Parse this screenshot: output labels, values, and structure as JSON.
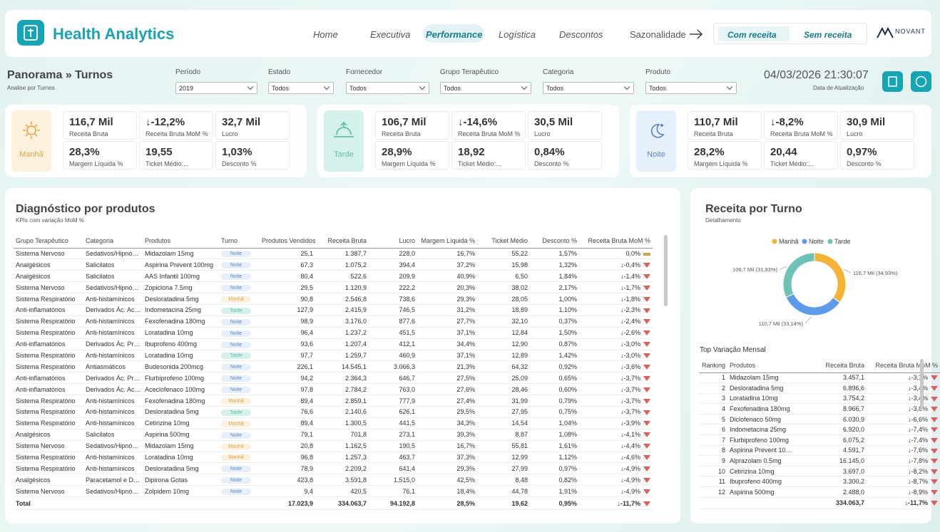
{
  "header": {
    "title": "Health Analytics",
    "nav": [
      "Home",
      "Executiva",
      "Performance",
      "Logística",
      "Descontos",
      "Sazonalidade"
    ],
    "active_nav": 2,
    "buttons": [
      "Com receita",
      "Sem receita"
    ],
    "logo": "NOVANT"
  },
  "panorama": {
    "title": "Panorama » Turnos",
    "subtitle": "Analise por Turnos"
  },
  "filters": [
    {
      "label": "Período",
      "value": "2019"
    },
    {
      "label": "Estado",
      "value": "Todos"
    },
    {
      "label": "Fornecedor",
      "value": "Todos"
    },
    {
      "label": "Grupo Terapêutico",
      "value": "Todos"
    },
    {
      "label": "Categoria",
      "value": "Todos"
    },
    {
      "label": "Produto",
      "value": "Todos"
    }
  ],
  "update": {
    "datetime": "04/03/2026 21:30:07",
    "label": "Data de Atualização"
  },
  "shifts": [
    {
      "name": "Manhã",
      "color": "#fdf0dc",
      "text_color": "#e0a44a",
      "kpis": [
        {
          "value": "116,7 Mil",
          "label": "Receita Bruta"
        },
        {
          "value": "↓-12,2%",
          "label": "Receita Bruta MoM %"
        },
        {
          "value": "32,7 Mil",
          "label": "Lucro"
        },
        {
          "value": "28,3%",
          "label": "Margem Líquida %"
        },
        {
          "value": "19,55",
          "label": "Ticket Médio:..."
        },
        {
          "value": "1,03%",
          "label": "Desconto %"
        }
      ]
    },
    {
      "name": "Tarde",
      "color": "#d4f1ec",
      "text_color": "#5fbfae",
      "kpis": [
        {
          "value": "106,7 Mil",
          "label": "Receita Bruta"
        },
        {
          "value": "↓-14,6%",
          "label": "Receita Bruta MoM %"
        },
        {
          "value": "30,5 Mil",
          "label": "Lucro"
        },
        {
          "value": "28,9%",
          "label": "Margem Líquida %"
        },
        {
          "value": "18,92",
          "label": "Ticket Médio:..."
        },
        {
          "value": "0,84%",
          "label": "Desconto %"
        }
      ]
    },
    {
      "name": "Noite",
      "color": "#e6effc",
      "text_color": "#5f86c9",
      "kpis": [
        {
          "value": "110,7 Mil",
          "label": "Receita Bruta"
        },
        {
          "value": "↓-8,2%",
          "label": "Receita Bruta MoM %"
        },
        {
          "value": "30,9 Mil",
          "label": "Lucro"
        },
        {
          "value": "28,2%",
          "label": "Margem Líquida %"
        },
        {
          "value": "20,44",
          "label": "Ticket Médio:..."
        },
        {
          "value": "0,97%",
          "label": "Desconto %"
        }
      ]
    }
  ],
  "diagnostic": {
    "title": "Diagnóstico por produtos",
    "subtitle": "KPIs com variação MoM %",
    "columns": [
      "Grupo Terapêutico",
      "Categoria",
      "Produtos",
      "Turno",
      "Produtos Vendidos",
      "Receita Bruta",
      "Lucro",
      "Margem Líquida %",
      "Ticket Médio",
      "Desconto %",
      "Receita Bruta MoM %"
    ],
    "rows": [
      [
        "Sistema Nervoso",
        "Sedativos/Hipnó…",
        "Midazolam 15mg",
        "Noite",
        "25,1",
        "1.387,7",
        "228,0",
        "16,7%",
        "55,22",
        "1,57%",
        "0,0%"
      ],
      [
        "Analgésicos",
        "Salicilatos",
        "Aspirina Prevent 100mg",
        "Noite",
        "67,3",
        "1.075,2",
        "394,4",
        "37,2%",
        "15,98",
        "1,32%",
        "↓-0,4%"
      ],
      [
        "Analgésicos",
        "Salicilatos",
        "AAS Infantil 100mg",
        "Noite",
        "80,4",
        "522,6",
        "209,9",
        "40,9%",
        "6,50",
        "1,84%",
        "↓-1,4%"
      ],
      [
        "Sistema Nervoso",
        "Sedativos/Hipnó…",
        "Zopiclona 7.5mg",
        "Noite",
        "29,5",
        "1.120,9",
        "222,2",
        "20,3%",
        "38,02",
        "2,17%",
        "↓-1,7%"
      ],
      [
        "Sistema Respiratório",
        "Anti-histamínicos",
        "Desloratadina 5mg",
        "Manhã",
        "90,8",
        "2.546,8",
        "738,6",
        "29,3%",
        "28,05",
        "1,00%",
        "↓-1,8%"
      ],
      [
        "Anti-inflamatórios",
        "Derivados Ác. Ac…",
        "Indometacina 25mg",
        "Tarde",
        "127,9",
        "2.415,9",
        "746,5",
        "31,2%",
        "18,89",
        "1,10%",
        "↓-2,3%"
      ],
      [
        "Sistema Respiratório",
        "Anti-histamínicos",
        "Fexofenadina 180mg",
        "Noite",
        "98,9",
        "3.176,0",
        "877,6",
        "27,7%",
        "32,10",
        "0,37%",
        "↓-2,4%"
      ],
      [
        "Sistema Respiratório",
        "Anti-histamínicos",
        "Loratadina 10mg",
        "Noite",
        "96,4",
        "1.237,2",
        "451,5",
        "37,1%",
        "12,84",
        "1,50%",
        "↓-2,6%"
      ],
      [
        "Anti-inflamatórios",
        "Derivados Ác. Pr…",
        "Ibuprofeno 400mg",
        "Noite",
        "93,6",
        "1.207,4",
        "412,1",
        "34,4%",
        "12,90",
        "0,87%",
        "↓-3,0%"
      ],
      [
        "Sistema Respiratório",
        "Anti-histamínicos",
        "Loratadina 10mg",
        "Tarde",
        "97,7",
        "1.259,7",
        "460,9",
        "37,1%",
        "12,89",
        "1,42%",
        "↓-3,0%"
      ],
      [
        "Sistema Respiratório",
        "Antiasmáticos",
        "Budesonida 200mcg",
        "Noite",
        "226,1",
        "14.545,1",
        "3.066,3",
        "21,3%",
        "64,32",
        "0,92%",
        "↓-3,6%"
      ],
      [
        "Anti-inflamatórios",
        "Derivados Ác. Pr…",
        "Flurbiprofeno 100mg",
        "Noite",
        "94,2",
        "2.364,3",
        "646,7",
        "27,5%",
        "25,09",
        "0,65%",
        "↓-3,7%"
      ],
      [
        "Anti-inflamatórios",
        "Derivados Ác. Ac…",
        "Aceclofenaco 100mg",
        "Noite",
        "97,8",
        "2.784,2",
        "763,0",
        "27,6%",
        "28,46",
        "0,60%",
        "↓-3,7%"
      ],
      [
        "Sistema Respiratório",
        "Anti-histamínicos",
        "Fexofenadina 180mg",
        "Manhã",
        "89,4",
        "2.859,1",
        "777,9",
        "27,4%",
        "31,99",
        "0,79%",
        "↓-3,7%"
      ],
      [
        "Sistema Respiratório",
        "Anti-histamínicos",
        "Desloratadina 5mg",
        "Tarde",
        "76,6",
        "2.140,6",
        "626,1",
        "29,5%",
        "27,95",
        "0,75%",
        "↓-3,7%"
      ],
      [
        "Sistema Respiratório",
        "Anti-histamínicos",
        "Cetirizina 10mg",
        "Manhã",
        "89,4",
        "1.300,5",
        "441,5",
        "34,3%",
        "14,54",
        "1,04%",
        "↓-3,9%"
      ],
      [
        "Analgésicos",
        "Salicilatos",
        "Aspirina 500mg",
        "Noite",
        "79,1",
        "701,8",
        "273,1",
        "39,3%",
        "8,87",
        "1,08%",
        "↓-4,1%"
      ],
      [
        "Sistema Nervoso",
        "Sedativos/Hipnó…",
        "Midazolam 15mg",
        "Manhã",
        "20,8",
        "1.162,5",
        "190,5",
        "16,7%",
        "55,81",
        "1,61%",
        "↓-4,4%"
      ],
      [
        "Sistema Respiratório",
        "Anti-histamínicos",
        "Loratadina 10mg",
        "Manhã",
        "96,8",
        "1.257,3",
        "463,7",
        "37,3%",
        "12,99",
        "1,12%",
        "↓-4,6%"
      ],
      [
        "Sistema Respiratório",
        "Anti-histamínicos",
        "Desloratadina 5mg",
        "Noite",
        "78,9",
        "2.209,2",
        "641,4",
        "29,3%",
        "27,99",
        "0,97%",
        "↓-4,9%"
      ],
      [
        "Analgésicos",
        "Paracetamol e D…",
        "Dipirona Gotas",
        "Noite",
        "423,8",
        "3.591,8",
        "1.515,0",
        "42,5%",
        "8,48",
        "0,82%",
        "↓-4,9%"
      ],
      [
        "Sistema Nervoso",
        "Sedativos/Hipnó…",
        "Zolpidem 10mg",
        "Noite",
        "9,4",
        "420,5",
        "76,1",
        "18,4%",
        "44,78",
        "1,91%",
        "↓-4,9%"
      ]
    ],
    "total": {
      "label": "Total",
      "cells": [
        "17.023,9",
        "334.063,7",
        "94.192,8",
        "28,5%",
        "19,62",
        "0,95%",
        "↓-11,7%"
      ]
    }
  },
  "donut": {
    "type": "pie",
    "title": "Receita por Turno",
    "subtitle": "Detalhamento",
    "categories": [
      "Manhã",
      "Noite",
      "Tarde"
    ],
    "values": [
      116.7,
      110.7,
      106.7
    ],
    "value_labels": [
      "116,7 Mil (34,93%)",
      "110,7 Mil (33,14%)",
      "106,7 Mil (31,93%)"
    ],
    "colors": [
      "#f5b335",
      "#5b9bea",
      "#6cc3b5"
    ]
  },
  "top": {
    "title": "Top Variação Mensal",
    "columns": [
      "Ranking",
      "Produtos",
      "Receita Bruta",
      "Receita Bruta MoM %"
    ],
    "rows": [
      [
        "1",
        "Midazolam 15mg",
        "3.457,1",
        "↓-3,1%"
      ],
      [
        "2",
        "Desloratadina 5mg",
        "6.896,6",
        "↓-3,4%"
      ],
      [
        "3",
        "Loratadina 10mg",
        "3.754,2",
        "↓-3,4%"
      ],
      [
        "4",
        "Fexofenadina 180mg",
        "8.966,7",
        "↓-3,8%"
      ],
      [
        "5",
        "Diclofenaco 50mg",
        "6.030,9",
        "↓-6,6%"
      ],
      [
        "6",
        "Indometacina 25mg",
        "6.920,0",
        "↓-7,4%"
      ],
      [
        "7",
        "Flurbiprofeno 100mg",
        "6.075,2",
        "↓-7,4%"
      ],
      [
        "8",
        "Aspirina Prevent 10…",
        "4.591,7",
        "↓-7,6%"
      ],
      [
        "9",
        "Alprazolam 0.5mg",
        "16.145,0",
        "↓-7,8%"
      ],
      [
        "10",
        "Cetirizina 10mg",
        "3.697,0",
        "↓-8,2%"
      ],
      [
        "11",
        "Ibuprofeno 400mg",
        "3.300,2",
        "↓-8,7%"
      ],
      [
        "12",
        "Aspirina 500mg",
        "2.488,0",
        "↓-8,9%"
      ]
    ],
    "total": [
      "334.063,7",
      "↓-11,7%"
    ]
  }
}
